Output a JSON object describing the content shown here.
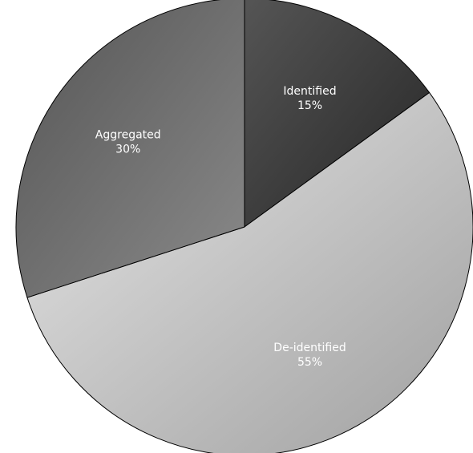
{
  "chart_data": {
    "type": "pie",
    "categories": [
      "Identified",
      "De-identified",
      "Aggregated"
    ],
    "values": [
      15,
      55,
      30
    ],
    "value_labels": [
      "15%",
      "55%",
      "30%"
    ],
    "colors": [
      [
        "#555555",
        "#262626"
      ],
      [
        "#e6e6e6",
        "#a0a0a0"
      ],
      [
        "#555555",
        "#8a8a8a"
      ]
    ],
    "start_angle": 0,
    "direction": "clockwise"
  }
}
